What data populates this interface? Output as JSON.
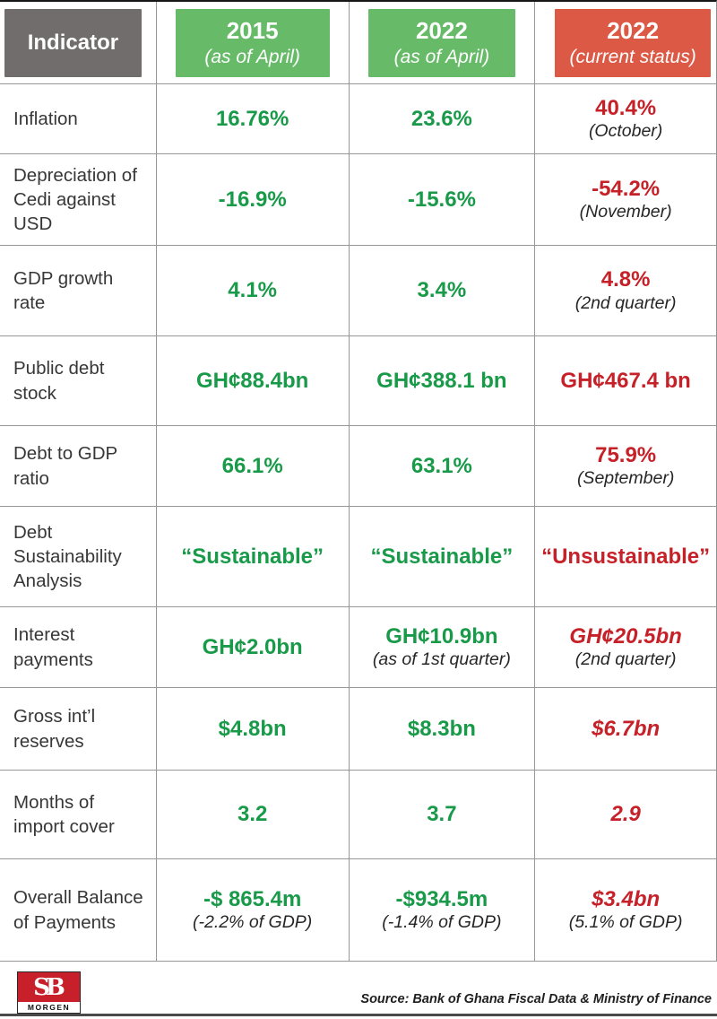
{
  "header": {
    "columns": [
      {
        "label": "Indicator",
        "sublabel": ""
      },
      {
        "label": "2015",
        "sublabel": "(as of April)"
      },
      {
        "label": "2022",
        "sublabel": "(as of April)"
      },
      {
        "label": "2022",
        "sublabel": "(current status)"
      }
    ]
  },
  "chart_data": {
    "type": "table",
    "title": "Ghana economic indicators: 2015 vs 2022",
    "columns": [
      "Indicator",
      "2015 (as of April)",
      "2022 (as of April)",
      "2022 (current status)"
    ],
    "rows_summary": [
      [
        "Inflation",
        "16.76%",
        "23.6%",
        "40.4% (October)"
      ],
      [
        "Depreciation of Cedi against USD",
        "-16.9%",
        "-15.6%",
        "-54.2% (November)"
      ],
      [
        "GDP growth rate",
        "4.1%",
        "3.4%",
        "4.8% (2nd quarter)"
      ],
      [
        "Public debt stock",
        "GH¢88.4bn",
        "GH¢388.1 bn",
        "GH¢467.4 bn"
      ],
      [
        "Debt to GDP ratio",
        "66.1%",
        "63.1%",
        "75.9% (September)"
      ],
      [
        "Debt Sustainability Analysis",
        "“Sustainable”",
        "“Sustainable”",
        "“Unsustainable”"
      ],
      [
        "Interest payments",
        "GH¢2.0bn",
        "GH¢10.9bn (as of 1st quarter)",
        "GH¢20.5bn (2nd quarter)"
      ],
      [
        "Gross int’l reserves",
        "$4.8bn",
        "$8.3bn",
        "$6.7bn"
      ],
      [
        "Months of import cover",
        "3.2",
        "3.7",
        "2.9"
      ],
      [
        "Overall Balance of Payments",
        "-$ 865.4m (-2.2% of GDP)",
        "-$934.5m (-1.4% of GDP)",
        "$3.4bn (5.1% of GDP)"
      ]
    ]
  },
  "rows": [
    {
      "indicator": "Inflation",
      "cells": [
        {
          "value": "16.76%"
        },
        {
          "value": "23.6%"
        },
        {
          "value": "40.4%",
          "sub": "(October)"
        }
      ]
    },
    {
      "indicator": "Depreciation of Cedi against USD",
      "cells": [
        {
          "value": "-16.9%"
        },
        {
          "value": "-15.6%"
        },
        {
          "value": "-54.2%",
          "sub": "(November)"
        }
      ]
    },
    {
      "indicator": "GDP growth rate",
      "cells": [
        {
          "value": "4.1%"
        },
        {
          "value": "3.4%"
        },
        {
          "value": "4.8%",
          "sub": "(2nd quarter)"
        }
      ]
    },
    {
      "indicator": "Public debt stock",
      "cells": [
        {
          "value": "GH¢88.4bn"
        },
        {
          "value": "GH¢388.1 bn"
        },
        {
          "value": "GH¢467.4 bn"
        }
      ]
    },
    {
      "indicator": "Debt to GDP ratio",
      "cells": [
        {
          "value": "66.1%"
        },
        {
          "value": "63.1%"
        },
        {
          "value": "75.9%",
          "sub": "(September)"
        }
      ]
    },
    {
      "indicator": "Debt Sustainability Analysis",
      "cells": [
        {
          "value": "“Sustainable”"
        },
        {
          "value": "“Sustainable”"
        },
        {
          "value": "“Unsustainable”"
        }
      ]
    },
    {
      "indicator": "Interest payments",
      "cells": [
        {
          "value": "GH¢2.0bn"
        },
        {
          "value": "GH¢10.9bn",
          "sub": "(as of 1st quarter)"
        },
        {
          "value": "GH¢20.5bn",
          "sub": "(2nd quarter)"
        }
      ]
    },
    {
      "indicator": "Gross int’l reserves",
      "cells": [
        {
          "value": "$4.8bn"
        },
        {
          "value": "$8.3bn"
        },
        {
          "value": "$6.7bn"
        }
      ]
    },
    {
      "indicator": "Months of import cover",
      "cells": [
        {
          "value": "3.2"
        },
        {
          "value": "3.7"
        },
        {
          "value": "2.9"
        }
      ]
    },
    {
      "indicator": "Overall Balance of Payments",
      "cells": [
        {
          "value": "-$ 865.4m",
          "sub": "(-2.2% of GDP)"
        },
        {
          "value": "-$934.5m",
          "sub": "(-1.4% of GDP)"
        },
        {
          "value": "$3.4bn",
          "sub": "(5.1% of GDP)"
        }
      ]
    }
  ],
  "footer": {
    "logo_top": "SB",
    "logo_bottom": "MORGEN",
    "source": "Source: Bank of Ghana Fiscal Data & Ministry of Finance"
  },
  "colors": {
    "header_gray": "#716d6d",
    "header_green": "#67bb68",
    "header_red": "#dc5a45",
    "value_green": "#189a49",
    "value_red": "#c62128",
    "logo_red": "#c8202a"
  }
}
